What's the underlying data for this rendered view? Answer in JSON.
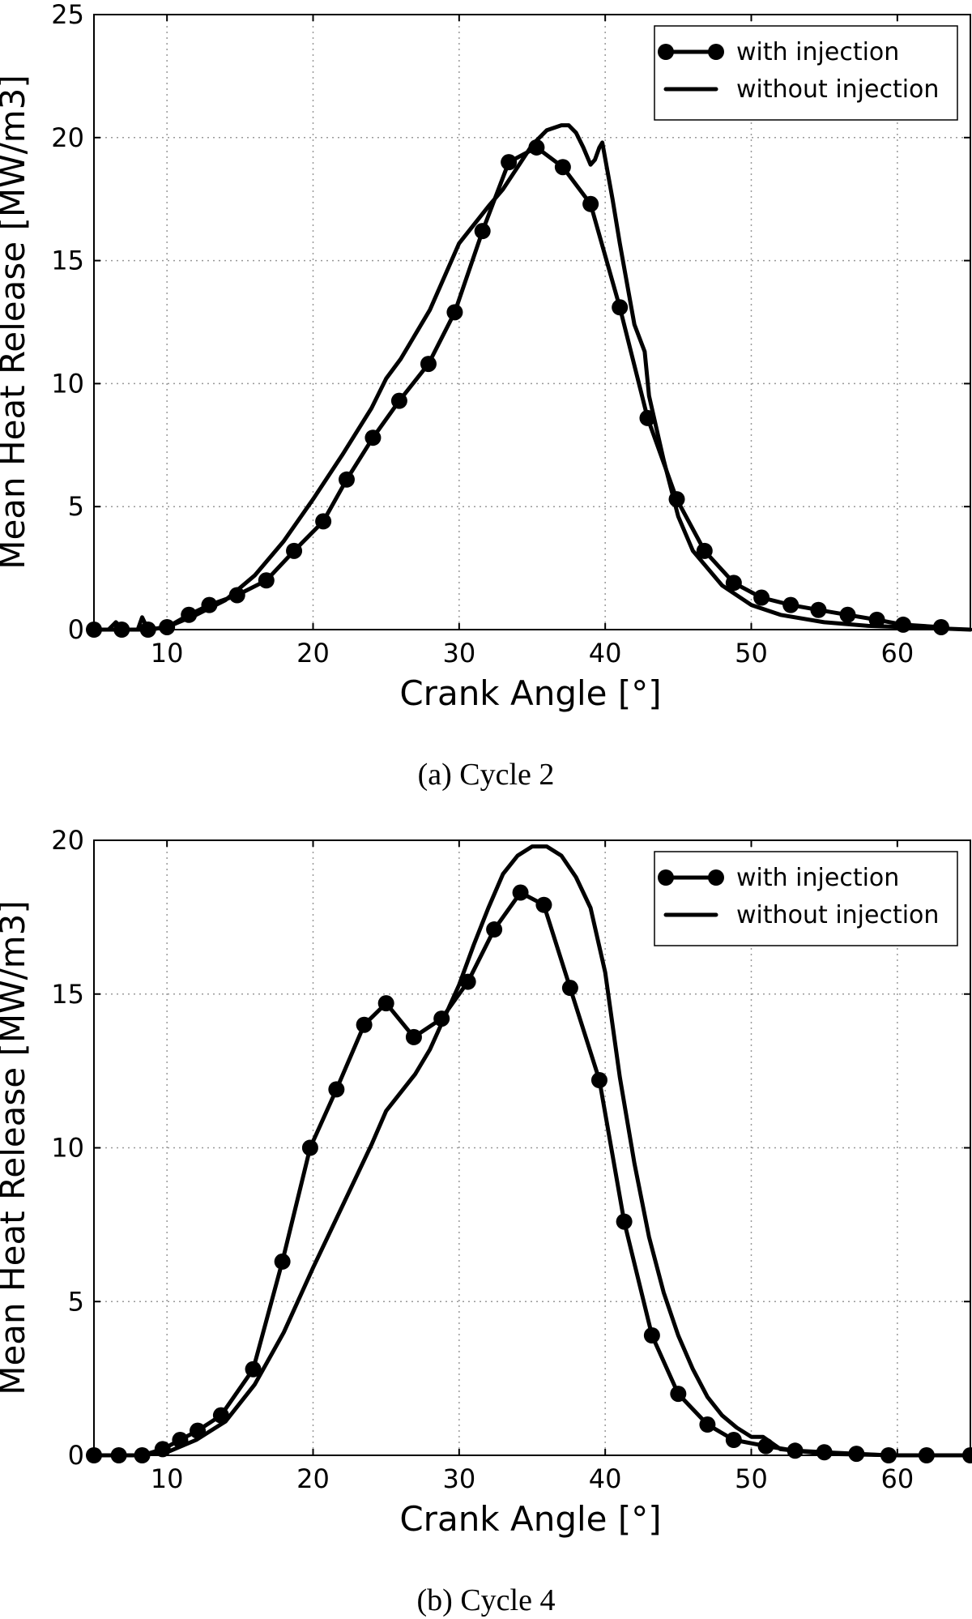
{
  "chart_data": [
    {
      "type": "line",
      "caption": "(a) Cycle 2",
      "xlabel": "Crank Angle [°]",
      "ylabel": "Mean Heat Release [MW/m3]",
      "xlim": [
        5,
        65
      ],
      "ylim": [
        0,
        25
      ],
      "xticks": [
        10,
        20,
        30,
        40,
        50,
        60
      ],
      "yticks": [
        0,
        5,
        10,
        15,
        20,
        25
      ],
      "grid": true,
      "legend_position": "top-right",
      "series": [
        {
          "name": "with injection",
          "marker": "circle",
          "x": [
            5.0,
            6.9,
            8.7,
            10.0,
            11.5,
            12.9,
            14.8,
            16.8,
            18.7,
            20.7,
            22.3,
            24.1,
            25.9,
            27.9,
            29.7,
            31.6,
            33.4,
            35.3,
            37.1,
            39.0,
            41.0,
            42.9,
            44.9,
            46.8,
            48.8,
            50.7,
            52.7,
            54.6,
            56.6,
            58.6,
            60.4,
            63.0
          ],
          "y": [
            0.0,
            0.0,
            0.0,
            0.1,
            0.6,
            1.0,
            1.4,
            2.0,
            3.2,
            4.4,
            6.1,
            7.8,
            9.3,
            10.8,
            12.9,
            16.2,
            19.0,
            19.6,
            18.8,
            17.3,
            13.1,
            8.6,
            5.3,
            3.2,
            1.9,
            1.3,
            1.0,
            0.8,
            0.6,
            0.4,
            0.2,
            0.1
          ]
        },
        {
          "name": "without injection",
          "marker": "none",
          "x": [
            5.0,
            6.0,
            6.5,
            7.0,
            8.0,
            8.3,
            8.7,
            10.0,
            12.0,
            14.0,
            16.0,
            18.0,
            20.0,
            22.0,
            24.0,
            25.0,
            26.0,
            28.0,
            30.0,
            32.0,
            33.0,
            34.0,
            35.0,
            36.0,
            37.0,
            37.5,
            38.0,
            38.5,
            39.0,
            39.3,
            39.6,
            39.8,
            40.5,
            41.0,
            42.0,
            42.7,
            43.0,
            44.0,
            45.0,
            46.0,
            48.0,
            50.0,
            52.0,
            55.0,
            58.0,
            62.0,
            65.0
          ],
          "y": [
            0.0,
            0.0,
            0.3,
            0.0,
            0.0,
            0.5,
            0.0,
            0.1,
            0.6,
            1.2,
            2.2,
            3.6,
            5.3,
            7.1,
            9.0,
            10.2,
            11.0,
            13.0,
            15.7,
            17.2,
            17.9,
            18.8,
            19.7,
            20.3,
            20.5,
            20.5,
            20.2,
            19.6,
            18.9,
            19.1,
            19.6,
            19.8,
            17.5,
            15.7,
            12.4,
            11.3,
            9.5,
            6.9,
            4.6,
            3.2,
            1.8,
            1.0,
            0.6,
            0.3,
            0.15,
            0.07,
            0.0
          ]
        }
      ]
    },
    {
      "type": "line",
      "caption": "(b) Cycle 4",
      "xlabel": "Crank Angle [°]",
      "ylabel": "Mean Heat Release [MW/m3]",
      "xlim": [
        5,
        65
      ],
      "ylim": [
        0,
        20
      ],
      "xticks": [
        10,
        20,
        30,
        40,
        50,
        60
      ],
      "yticks": [
        0,
        5,
        10,
        15,
        20
      ],
      "grid": true,
      "legend_position": "top-right",
      "series": [
        {
          "name": "with injection",
          "marker": "circle",
          "x": [
            5.0,
            6.7,
            8.3,
            9.7,
            10.9,
            12.1,
            13.7,
            15.9,
            17.9,
            19.8,
            21.6,
            23.5,
            25.0,
            26.9,
            28.8,
            30.6,
            32.4,
            34.2,
            35.8,
            37.6,
            39.6,
            41.3,
            43.2,
            45.0,
            47.0,
            48.8,
            51.0,
            53.0,
            55.0,
            57.2,
            59.4,
            62.0,
            65.0
          ],
          "y": [
            0.0,
            0.0,
            0.0,
            0.2,
            0.5,
            0.8,
            1.3,
            2.8,
            6.3,
            10.0,
            11.9,
            14.0,
            14.7,
            13.6,
            14.2,
            15.4,
            17.1,
            18.3,
            17.9,
            15.2,
            12.2,
            7.6,
            3.9,
            2.0,
            1.0,
            0.5,
            0.3,
            0.15,
            0.1,
            0.05,
            0.0,
            0.0,
            0.0
          ]
        },
        {
          "name": "without injection",
          "marker": "none",
          "x": [
            5.0,
            8.0,
            10.0,
            12.0,
            14.0,
            16.0,
            18.0,
            20.0,
            22.0,
            24.0,
            25.0,
            26.0,
            27.0,
            28.0,
            30.0,
            31.0,
            32.0,
            33.0,
            34.0,
            35.0,
            36.0,
            37.0,
            38.0,
            39.0,
            40.0,
            41.0,
            42.0,
            43.0,
            44.0,
            45.0,
            46.0,
            47.0,
            48.0,
            49.0,
            50.0,
            50.8,
            52.0,
            55.0,
            60.0,
            65.0
          ],
          "y": [
            0.0,
            0.0,
            0.1,
            0.5,
            1.1,
            2.3,
            4.0,
            6.1,
            8.1,
            10.1,
            11.2,
            11.8,
            12.4,
            13.2,
            15.3,
            16.6,
            17.8,
            18.9,
            19.5,
            19.8,
            19.8,
            19.5,
            18.8,
            17.8,
            15.7,
            12.3,
            9.5,
            7.1,
            5.3,
            3.9,
            2.8,
            1.9,
            1.3,
            0.9,
            0.6,
            0.6,
            0.2,
            0.05,
            0.0,
            0.0
          ]
        }
      ]
    }
  ]
}
